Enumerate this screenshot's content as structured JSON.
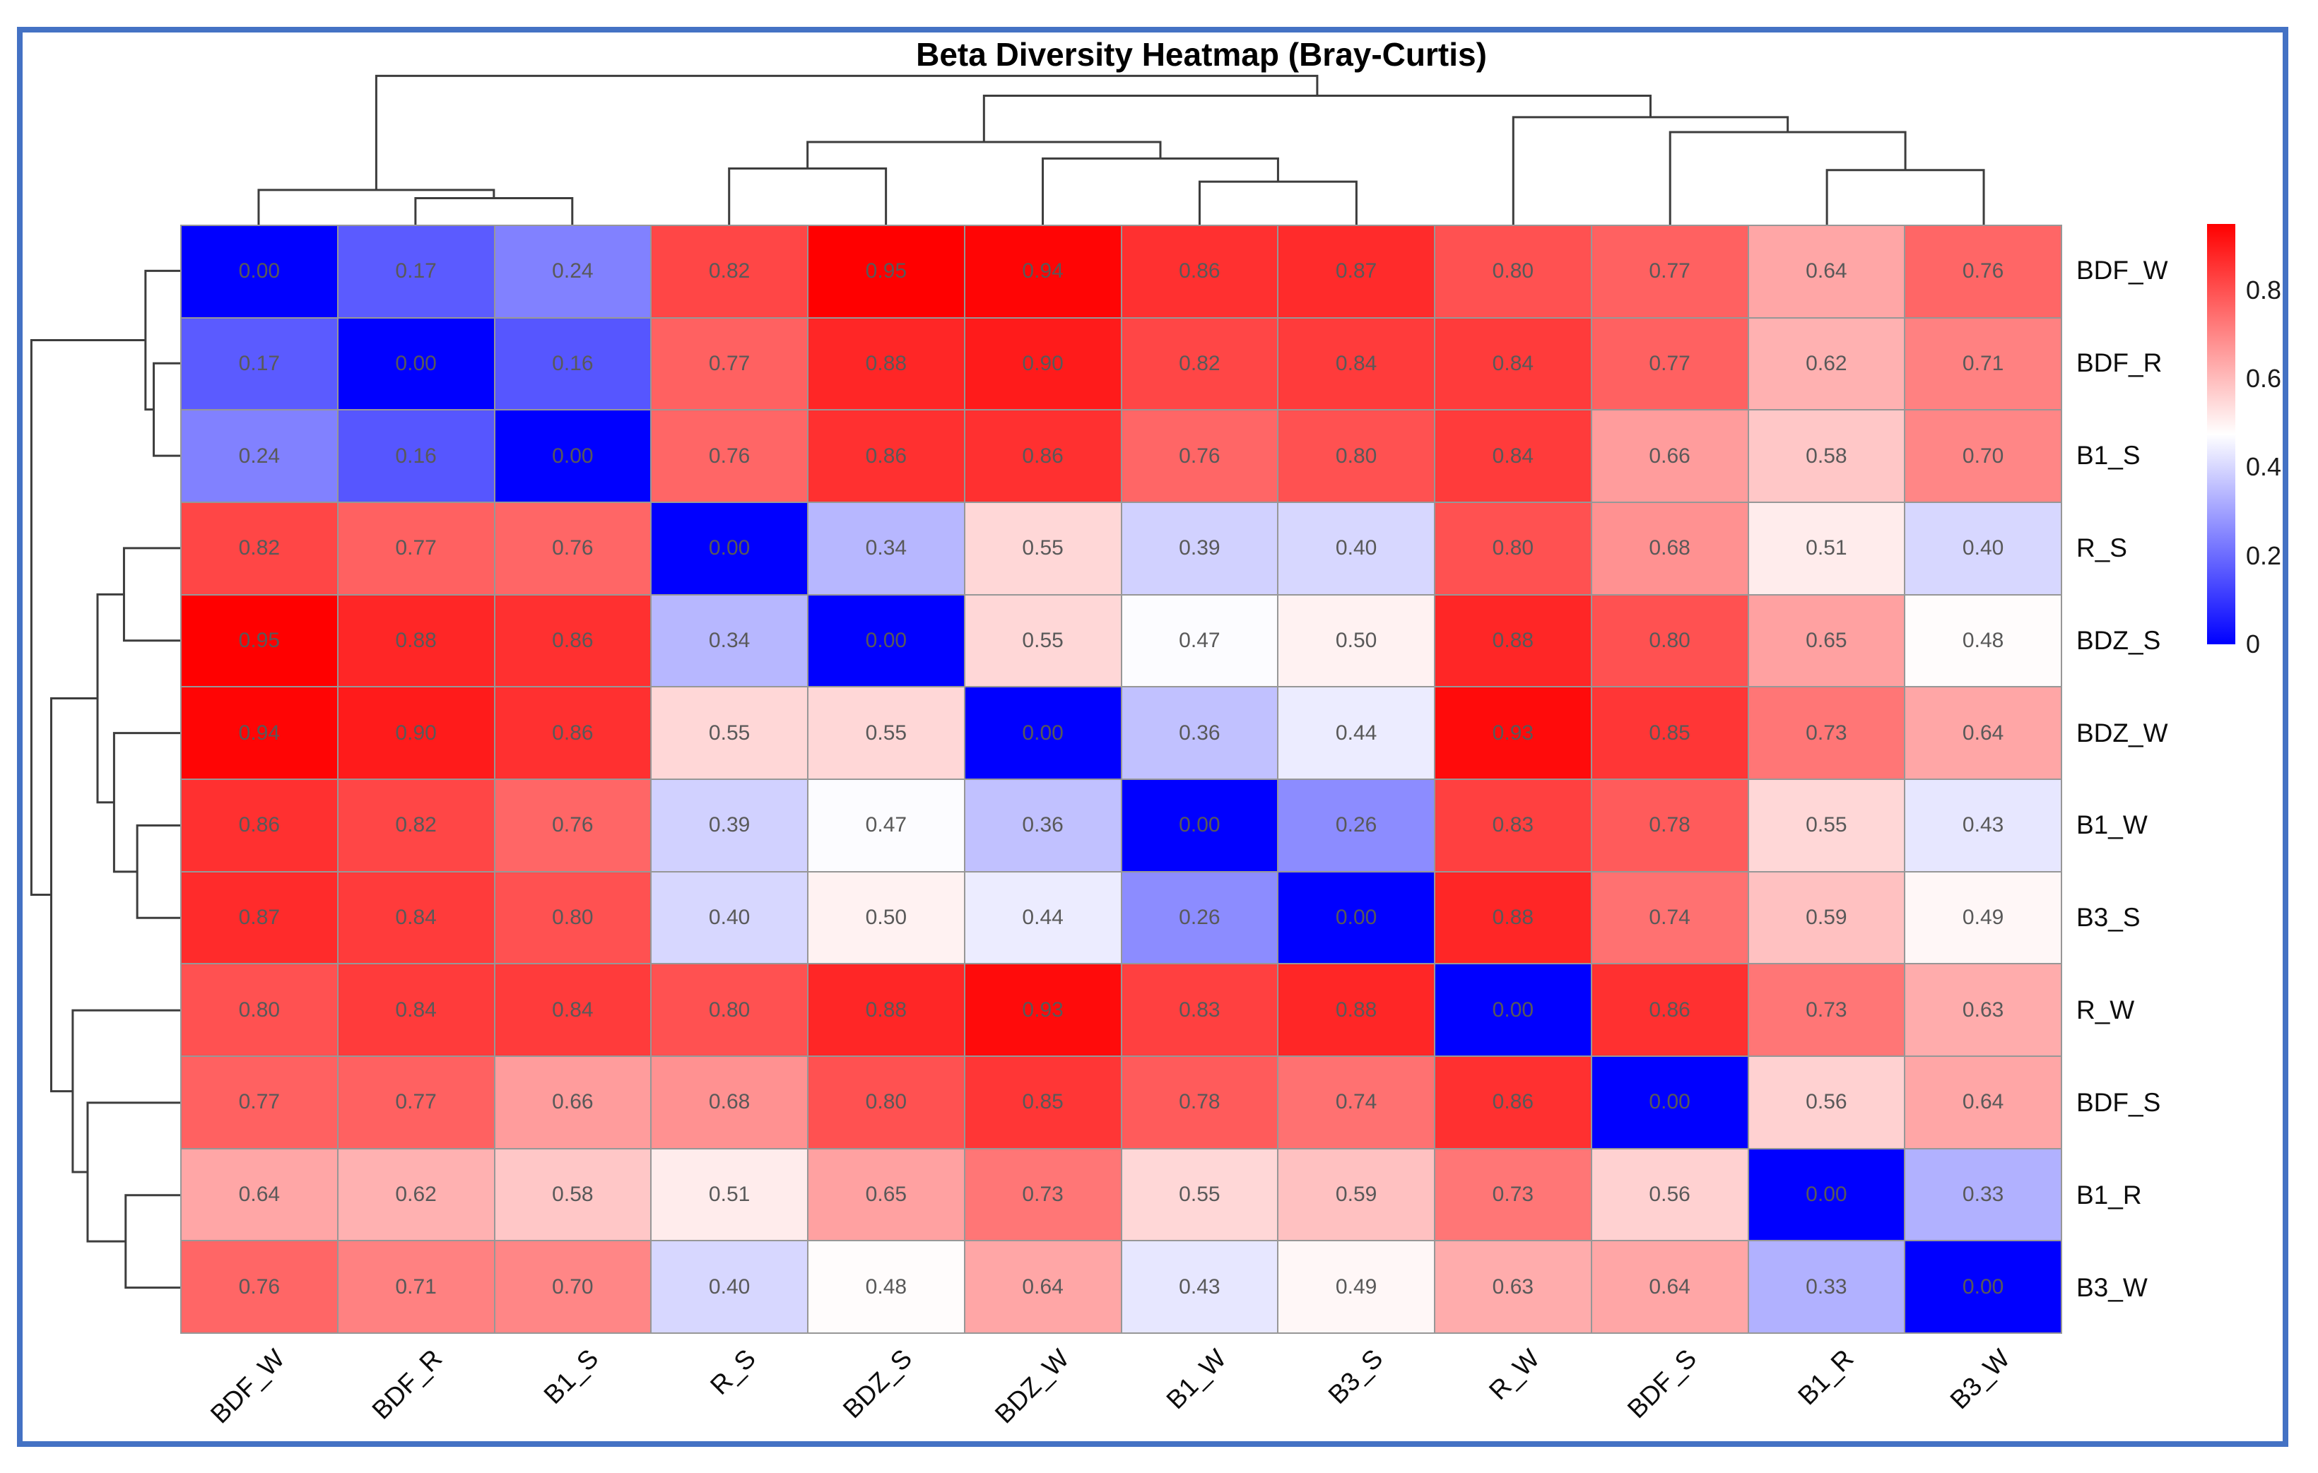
{
  "title": "Beta Diversity Heatmap (Bray-Curtis)",
  "colors": {
    "frame_border": "#4472c4",
    "grid_line": "#979797",
    "cell_text": "#595959",
    "label_text": "#0d0d0d",
    "dendrogram_line": "#3d3d3d",
    "colormap_low": "#0000ff",
    "colormap_mid": "#ffffff",
    "colormap_high": "#ff0000"
  },
  "chart_data": {
    "type": "heatmap",
    "title": "Beta Diversity Heatmap (Bray-Curtis)",
    "metric": "Bray-Curtis dissimilarity",
    "colormap": "bwr",
    "vmin": 0,
    "vmax": 0.95,
    "grid": true,
    "legend_position": "right-colorbar",
    "labels": [
      "BDF_W",
      "BDF_R",
      "B1_S",
      "R_S",
      "BDZ_S",
      "BDZ_W",
      "B1_W",
      "B3_S",
      "R_W",
      "BDF_S",
      "B1_R",
      "B3_W"
    ],
    "matrix": [
      [
        0.0,
        0.17,
        0.24,
        0.82,
        0.95,
        0.94,
        0.86,
        0.87,
        0.8,
        0.77,
        0.64,
        0.76
      ],
      [
        0.17,
        0.0,
        0.16,
        0.77,
        0.88,
        0.9,
        0.82,
        0.84,
        0.84,
        0.77,
        0.62,
        0.71
      ],
      [
        0.24,
        0.16,
        0.0,
        0.76,
        0.86,
        0.86,
        0.76,
        0.8,
        0.84,
        0.66,
        0.58,
        0.7
      ],
      [
        0.82,
        0.77,
        0.76,
        0.0,
        0.34,
        0.55,
        0.39,
        0.4,
        0.8,
        0.68,
        0.51,
        0.4
      ],
      [
        0.95,
        0.88,
        0.86,
        0.34,
        0.0,
        0.55,
        0.47,
        0.5,
        0.88,
        0.8,
        0.65,
        0.48
      ],
      [
        0.94,
        0.9,
        0.86,
        0.55,
        0.55,
        0.0,
        0.36,
        0.44,
        0.93,
        0.85,
        0.73,
        0.64
      ],
      [
        0.86,
        0.82,
        0.76,
        0.39,
        0.47,
        0.36,
        0.0,
        0.26,
        0.83,
        0.78,
        0.55,
        0.43
      ],
      [
        0.87,
        0.84,
        0.8,
        0.4,
        0.5,
        0.44,
        0.26,
        0.0,
        0.88,
        0.74,
        0.59,
        0.49
      ],
      [
        0.8,
        0.84,
        0.84,
        0.8,
        0.88,
        0.93,
        0.83,
        0.88,
        0.0,
        0.86,
        0.73,
        0.63
      ],
      [
        0.77,
        0.77,
        0.66,
        0.68,
        0.8,
        0.85,
        0.78,
        0.74,
        0.86,
        0.0,
        0.56,
        0.64
      ],
      [
        0.64,
        0.62,
        0.58,
        0.51,
        0.65,
        0.73,
        0.55,
        0.59,
        0.73,
        0.56,
        0.0,
        0.33
      ],
      [
        0.76,
        0.71,
        0.7,
        0.4,
        0.48,
        0.64,
        0.43,
        0.49,
        0.63,
        0.64,
        0.33,
        0.0
      ]
    ],
    "colorbar_ticks": [
      {
        "value": 0.8,
        "label": "0.8"
      },
      {
        "value": 0.6,
        "label": "0.6"
      },
      {
        "value": 0.4,
        "label": "0.4"
      },
      {
        "value": 0.2,
        "label": "0.2"
      },
      {
        "value": 0.0,
        "label": "0"
      }
    ],
    "dendrogram": {
      "orientation": [
        "top",
        "left"
      ],
      "merges": [
        {
          "a": "BDF_R",
          "b": "B1_S",
          "h": 0.16
        },
        {
          "a": "BDF_W",
          "b": "m0",
          "h": 0.21
        },
        {
          "a": "R_S",
          "b": "BDZ_S",
          "h": 0.34
        },
        {
          "a": "B1_W",
          "b": "B3_S",
          "h": 0.26
        },
        {
          "a": "BDZ_W",
          "b": "m3",
          "h": 0.4
        },
        {
          "a": "m2",
          "b": "m4",
          "h": 0.5
        },
        {
          "a": "B1_R",
          "b": "B3_W",
          "h": 0.33
        },
        {
          "a": "BDF_S",
          "b": "m6",
          "h": 0.56
        },
        {
          "a": "R_W",
          "b": "m7",
          "h": 0.65
        },
        {
          "a": "m5",
          "b": "m8",
          "h": 0.78
        },
        {
          "a": "m1",
          "b": "m9",
          "h": 0.9
        }
      ]
    }
  }
}
